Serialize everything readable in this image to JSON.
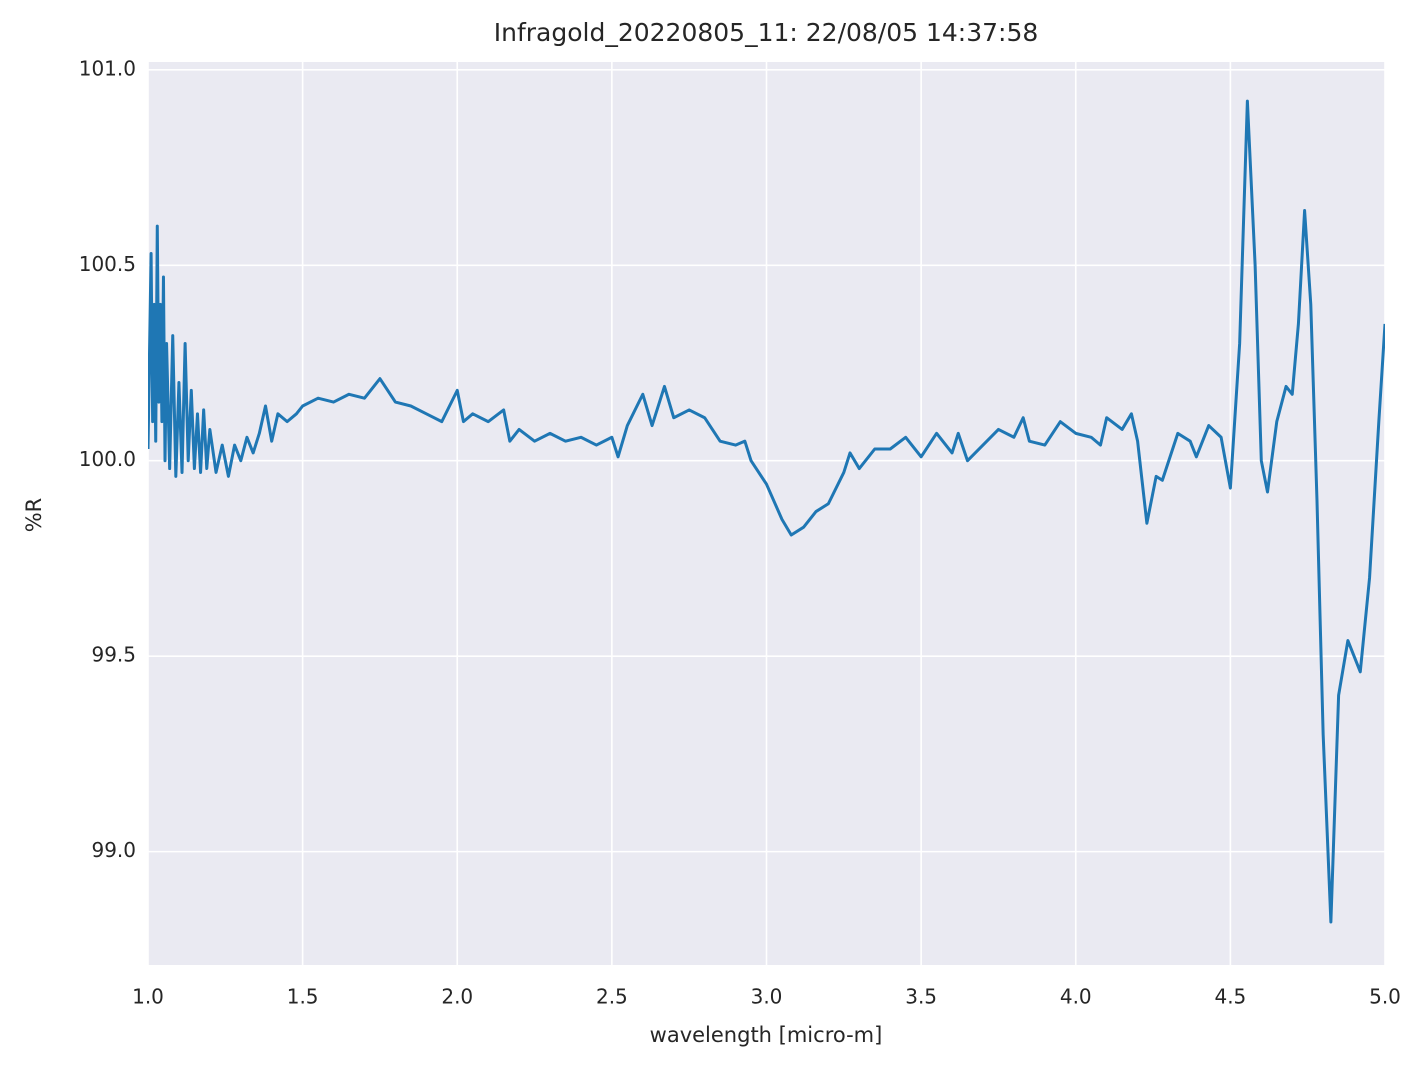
{
  "chart_data": {
    "type": "line",
    "title": "Infragold_20220805_11:  22/08/05 14:37:58",
    "x_label": "wavelength [micro-m]",
    "y_label": "%R",
    "color": "#1f77b4",
    "grid": true,
    "xlim": [
      1.0,
      5.0
    ],
    "ylim": [
      98.71,
      101.02
    ],
    "xticks": [
      {
        "value": 1,
        "label": "1.0"
      },
      1.5,
      {
        "value": 2,
        "label": "2.0"
      },
      2.5,
      {
        "value": 3,
        "label": "3.0"
      },
      3.5,
      {
        "value": 4,
        "label": "4.0"
      },
      4.5,
      {
        "value": 5,
        "label": "5.0"
      }
    ],
    "yticks": [
      {
        "value": 99,
        "label": "99.0"
      },
      99.5,
      {
        "value": 100,
        "label": "100.0"
      },
      100.5,
      {
        "value": 101,
        "label": "101.0"
      }
    ],
    "x": [
      1.0,
      1.01,
      1.015,
      1.02,
      1.025,
      1.03,
      1.035,
      1.04,
      1.045,
      1.05,
      1.055,
      1.06,
      1.07,
      1.08,
      1.09,
      1.1,
      1.11,
      1.12,
      1.13,
      1.14,
      1.15,
      1.16,
      1.17,
      1.18,
      1.19,
      1.2,
      1.22,
      1.24,
      1.26,
      1.28,
      1.3,
      1.32,
      1.34,
      1.36,
      1.38,
      1.4,
      1.42,
      1.45,
      1.48,
      1.5,
      1.55,
      1.6,
      1.65,
      1.7,
      1.75,
      1.8,
      1.85,
      1.9,
      1.95,
      2.0,
      2.02,
      2.05,
      2.1,
      2.15,
      2.17,
      2.2,
      2.25,
      2.3,
      2.35,
      2.4,
      2.45,
      2.5,
      2.52,
      2.55,
      2.6,
      2.63,
      2.67,
      2.7,
      2.75,
      2.8,
      2.85,
      2.9,
      2.93,
      2.95,
      3.0,
      3.05,
      3.08,
      3.12,
      3.16,
      3.2,
      3.25,
      3.27,
      3.3,
      3.35,
      3.4,
      3.45,
      3.5,
      3.55,
      3.6,
      3.62,
      3.65,
      3.7,
      3.75,
      3.8,
      3.83,
      3.85,
      3.9,
      3.95,
      4.0,
      4.05,
      4.08,
      4.1,
      4.15,
      4.18,
      4.2,
      4.23,
      4.26,
      4.28,
      4.33,
      4.37,
      4.39,
      4.43,
      4.47,
      4.5,
      4.53,
      4.555,
      4.58,
      4.6,
      4.62,
      4.65,
      4.68,
      4.7,
      4.72,
      4.74,
      4.76,
      4.78,
      4.8,
      4.825,
      4.85,
      4.88,
      4.92,
      4.95,
      4.98,
      5.0
    ],
    "values": [
      100.03,
      100.53,
      100.1,
      100.4,
      100.05,
      100.6,
      100.15,
      100.4,
      100.1,
      100.47,
      100.0,
      100.3,
      99.98,
      100.32,
      99.96,
      100.2,
      99.97,
      100.3,
      100.0,
      100.18,
      99.98,
      100.12,
      99.97,
      100.13,
      99.98,
      100.08,
      99.97,
      100.04,
      99.96,
      100.04,
      100.0,
      100.06,
      100.02,
      100.07,
      100.14,
      100.05,
      100.12,
      100.1,
      100.12,
      100.14,
      100.16,
      100.15,
      100.17,
      100.16,
      100.21,
      100.15,
      100.14,
      100.12,
      100.1,
      100.18,
      100.1,
      100.12,
      100.1,
      100.13,
      100.05,
      100.08,
      100.05,
      100.07,
      100.05,
      100.06,
      100.04,
      100.06,
      100.01,
      100.09,
      100.17,
      100.09,
      100.19,
      100.11,
      100.13,
      100.11,
      100.05,
      100.04,
      100.05,
      100.0,
      99.94,
      99.85,
      99.81,
      99.83,
      99.87,
      99.89,
      99.97,
      100.02,
      99.98,
      100.03,
      100.03,
      100.06,
      100.01,
      100.07,
      100.02,
      100.07,
      100.0,
      100.04,
      100.08,
      100.06,
      100.11,
      100.05,
      100.04,
      100.1,
      100.07,
      100.06,
      100.04,
      100.11,
      100.08,
      100.12,
      100.05,
      99.84,
      99.96,
      99.95,
      100.07,
      100.05,
      100.01,
      100.09,
      100.06,
      99.93,
      100.3,
      100.92,
      100.5,
      100.0,
      99.92,
      100.1,
      100.19,
      100.17,
      100.35,
      100.64,
      100.4,
      99.9,
      99.3,
      98.82,
      99.4,
      99.54,
      99.46,
      99.7,
      100.1,
      100.35
    ]
  }
}
